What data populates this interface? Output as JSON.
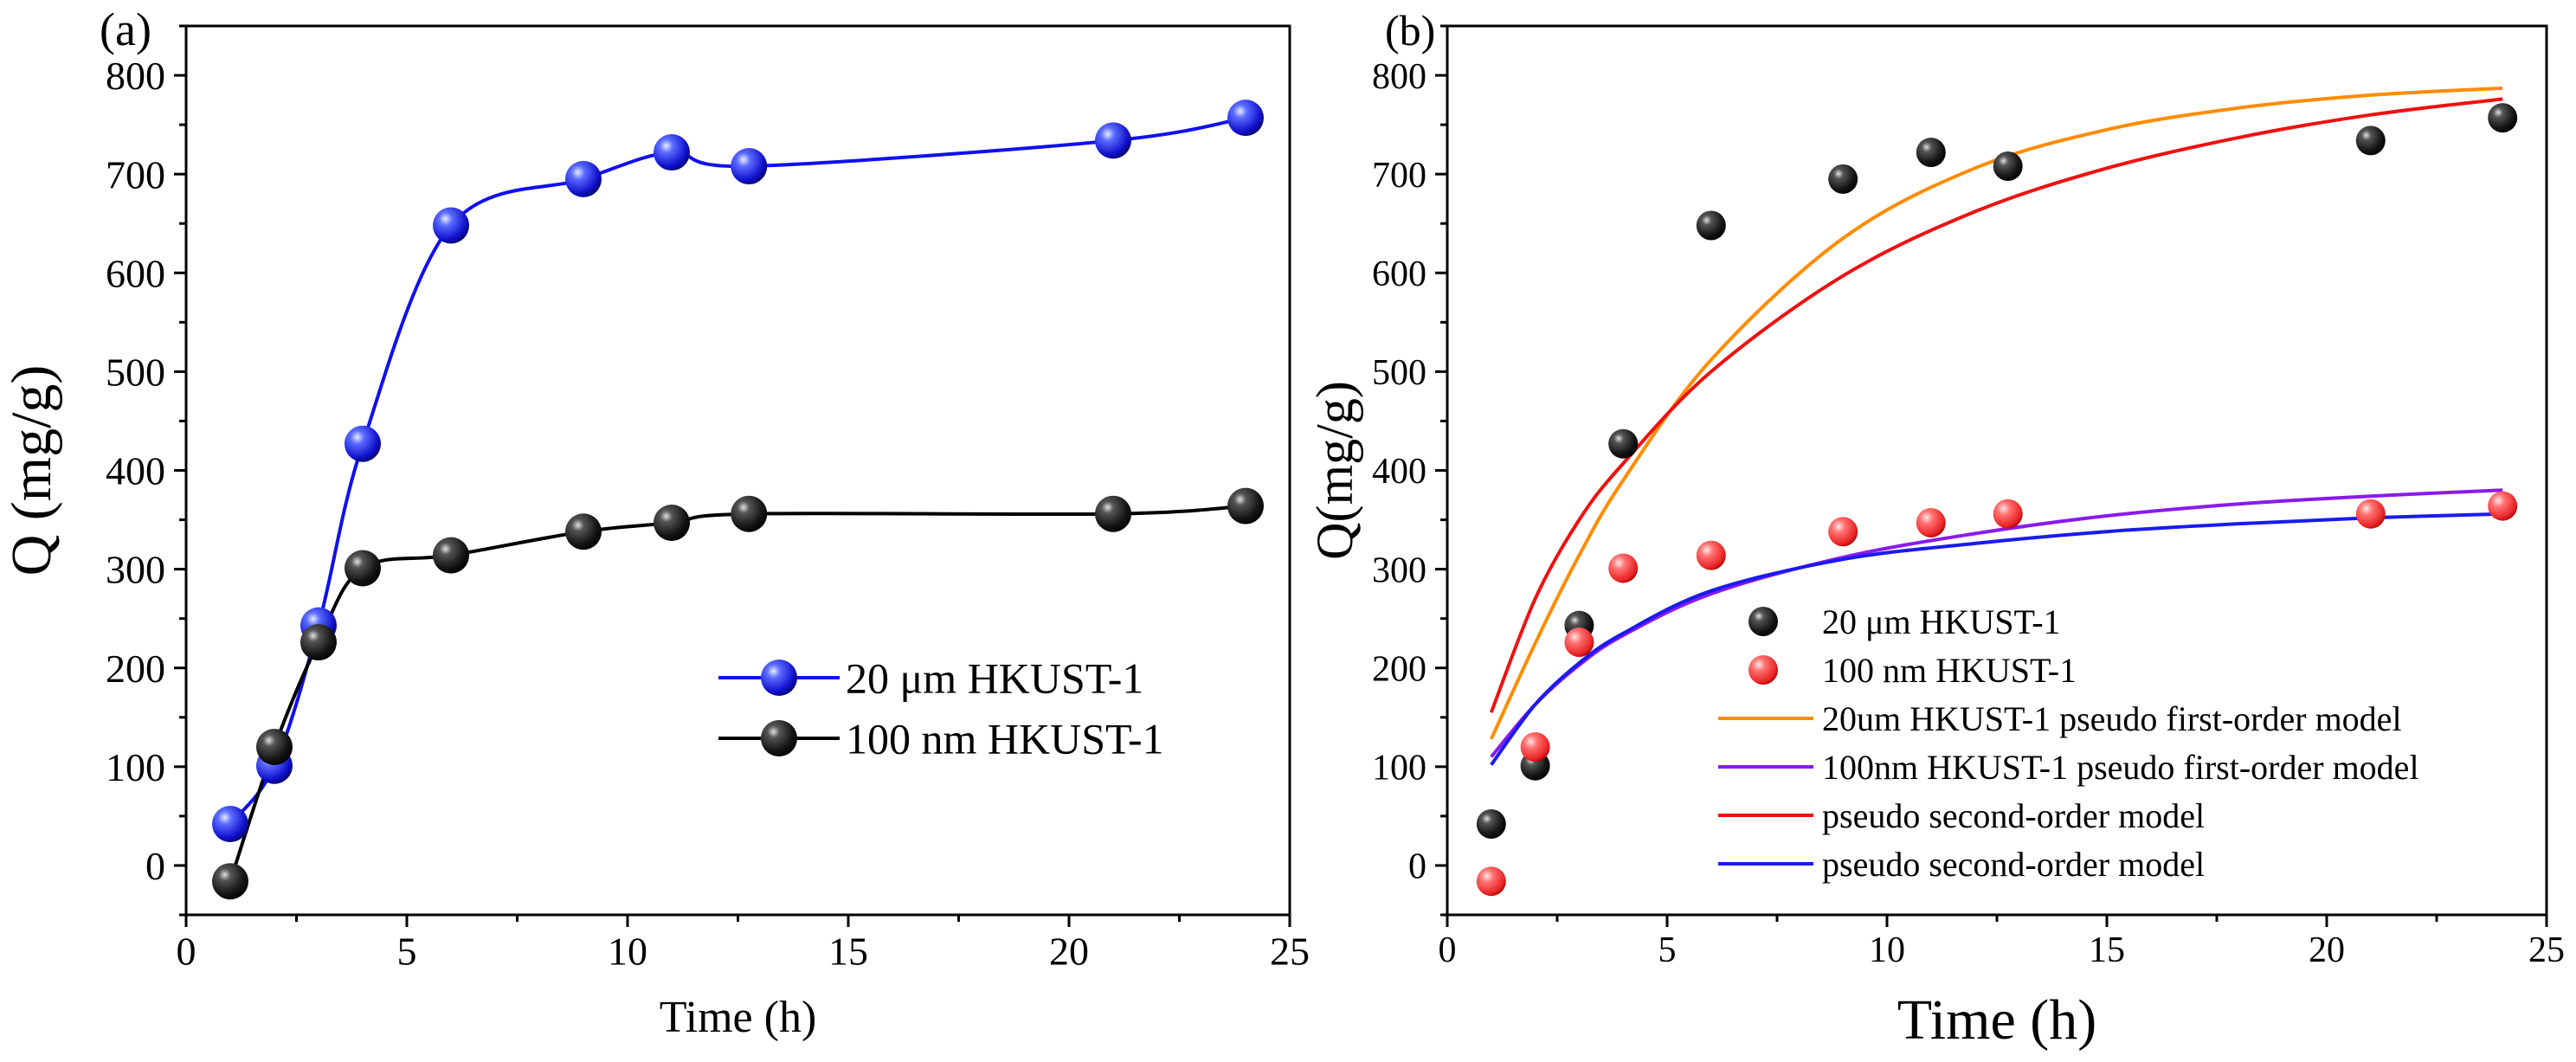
{
  "chart_data": [
    {
      "type": "scatter",
      "panel_label": "(a)",
      "xlabel": "Time (h)",
      "ylabel": "Q (mg/g)",
      "xlim": [
        0,
        25
      ],
      "ylim": [
        -50,
        850
      ],
      "x_ticks": [
        0,
        5,
        10,
        15,
        20,
        25
      ],
      "y_ticks": [
        0,
        100,
        200,
        300,
        400,
        500,
        600,
        700,
        800
      ],
      "legend_position": "center-right",
      "series": [
        {
          "name": "20 μm HKUST-1",
          "color": "#1010ee",
          "x": [
            1,
            2,
            3,
            4,
            6,
            9,
            11,
            12.75,
            21,
            24
          ],
          "y": [
            42,
            101,
            243,
            427,
            648,
            695,
            722,
            708,
            734,
            757
          ]
        },
        {
          "name": "100 nm HKUST-1",
          "color": "#000000",
          "x": [
            1,
            2,
            3,
            4,
            6,
            9,
            11,
            12.75,
            21,
            24
          ],
          "y": [
            -16,
            120,
            226,
            301,
            314,
            338,
            347,
            356,
            356,
            364
          ]
        }
      ]
    },
    {
      "type": "scatter",
      "panel_label": "(b)",
      "xlabel": "Time (h)",
      "ylabel": "Q(mg/g)",
      "xlim": [
        0,
        25
      ],
      "ylim": [
        -50,
        850
      ],
      "x_ticks": [
        0,
        5,
        10,
        15,
        20,
        25
      ],
      "y_ticks": [
        0,
        100,
        200,
        300,
        400,
        500,
        600,
        700,
        800
      ],
      "legend_position": "bottom-center",
      "series": [
        {
          "name": "20 μm HKUST-1",
          "color": "#000000",
          "x": [
            1,
            2,
            3,
            4,
            6,
            9,
            11,
            12.75,
            21,
            24
          ],
          "y": [
            42,
            101,
            243,
            427,
            648,
            695,
            722,
            708,
            734,
            757
          ]
        },
        {
          "name": "100 nm HKUST-1",
          "color": "#ee2222",
          "x": [
            1,
            2,
            3,
            4,
            6,
            9,
            11,
            12.75,
            21,
            24
          ],
          "y": [
            -16,
            120,
            226,
            301,
            314,
            338,
            347,
            356,
            356,
            364
          ]
        }
      ],
      "fits": [
        {
          "name": "20um HKUST-1 pseudo first-order model",
          "color": "#ff8c00",
          "x": [
            1,
            2,
            3,
            4,
            6,
            9,
            12,
            15,
            18,
            21,
            24
          ],
          "y": [
            128,
            225,
            314,
            390,
            512,
            635,
            706,
            745,
            767,
            780,
            787
          ]
        },
        {
          "name": "100nm HKUST-1 pseudo first-order model",
          "color": "#8a1aee",
          "x": [
            1,
            2,
            3,
            4,
            6,
            9,
            12,
            15,
            18,
            21,
            24
          ],
          "y": [
            110,
            163,
            203,
            233,
            275,
            312,
            336,
            354,
            366,
            374,
            380
          ]
        },
        {
          "name": "pseudo second-order model",
          "color": "#ee1111",
          "x": [
            1,
            2,
            3,
            4,
            6,
            9,
            12,
            15,
            18,
            21,
            24
          ],
          "y": [
            155,
            270,
            350,
            407,
            500,
            597,
            662,
            706,
            737,
            760,
            776
          ]
        },
        {
          "name": "pseudo second-order model",
          "color": "#1a1aee",
          "x": [
            1,
            2,
            3,
            4,
            6,
            9,
            12,
            15,
            18,
            21,
            24
          ],
          "y": [
            102,
            163,
            205,
            235,
            278,
            310,
            326,
            338,
            346,
            352,
            356
          ]
        }
      ]
    }
  ]
}
